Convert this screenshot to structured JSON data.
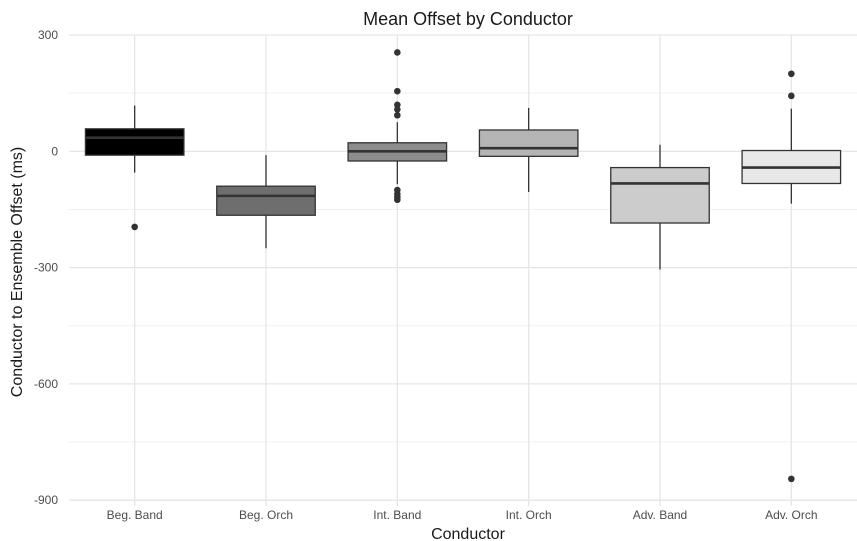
{
  "chart_data": {
    "type": "box",
    "title": "Mean Offset by Conductor",
    "xlabel": "Conductor",
    "ylabel": "Conductor to Ensemble Offset (ms)",
    "ylim": [
      -915,
      300
    ],
    "y_ticks": [
      300,
      0,
      -300,
      -600,
      -900
    ],
    "y_tick_labels": [
      "300",
      "0",
      "-300",
      "-600",
      "-900"
    ],
    "grid": true,
    "legend": "none",
    "categories": [
      "Beg. Band",
      "Beg. Orch",
      "Int. Band",
      "Int. Orch",
      "Adv. Band",
      "Adv. Orch"
    ],
    "boxes": [
      {
        "category": "Beg. Band",
        "fill": "#000000",
        "whisker_low": -55,
        "q1": -10,
        "median": 35,
        "q3": 58,
        "whisker_high": 118,
        "outliers": [
          -195
        ]
      },
      {
        "category": "Beg. Orch",
        "fill": "#6e6e6e",
        "whisker_low": -250,
        "q1": -165,
        "median": -115,
        "q3": -90,
        "whisker_high": -10,
        "outliers": []
      },
      {
        "category": "Int. Band",
        "fill": "#8c8c8c",
        "whisker_low": -85,
        "q1": -25,
        "median": 0,
        "q3": 22,
        "whisker_high": 75,
        "outliers": [
          255,
          155,
          120,
          108,
          93,
          -100,
          -110,
          -118,
          -125
        ]
      },
      {
        "category": "Int. Orch",
        "fill": "#b5b5b5",
        "whisker_low": -105,
        "q1": -13,
        "median": 8,
        "q3": 55,
        "whisker_high": 112,
        "outliers": []
      },
      {
        "category": "Adv. Band",
        "fill": "#cccccc",
        "whisker_low": -305,
        "q1": -185,
        "median": -83,
        "q3": -42,
        "whisker_high": 17,
        "outliers": []
      },
      {
        "category": "Adv. Orch",
        "fill": "#e8e8e8",
        "whisker_low": -135,
        "q1": -83,
        "median": -42,
        "q3": 2,
        "whisker_high": 110,
        "outliers": [
          200,
          143,
          -845
        ]
      }
    ]
  }
}
